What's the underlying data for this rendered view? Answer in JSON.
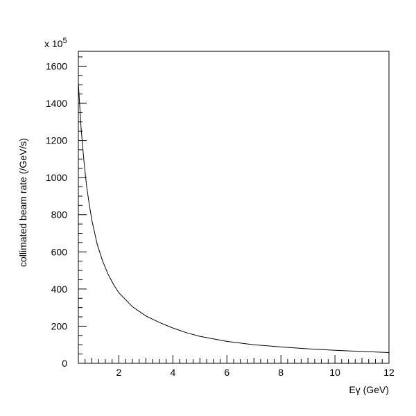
{
  "chart_data": {
    "type": "line",
    "title": "",
    "xlabel": "Eγ (GeV)",
    "ylabel": "collimated beam rate (/GeV/s)",
    "y_multiplier": "x 10",
    "y_multiplier_exponent": "5",
    "xlim": [
      0.5,
      12
    ],
    "ylim": [
      0,
      1600
    ],
    "x_ticks": [
      2,
      4,
      6,
      8,
      10,
      12
    ],
    "y_ticks": [
      0,
      200,
      400,
      600,
      800,
      1000,
      1200,
      1400,
      1600
    ],
    "grid": false,
    "series": [
      {
        "x": [
          0.5,
          0.6,
          0.7,
          0.8,
          0.9,
          1.0,
          1.2,
          1.4,
          1.6,
          1.8,
          2.0,
          2.5,
          3.0,
          3.5,
          4.0,
          4.5,
          5.0,
          6.0,
          7.0,
          8.0,
          9.0,
          10.0,
          11.0,
          12.0
        ],
        "y": [
          1510,
          1270,
          1100,
          960,
          860,
          770,
          640,
          550,
          480,
          425,
          380,
          305,
          255,
          220,
          190,
          165,
          145,
          118,
          100,
          88,
          78,
          70,
          64,
          58
        ]
      }
    ]
  }
}
